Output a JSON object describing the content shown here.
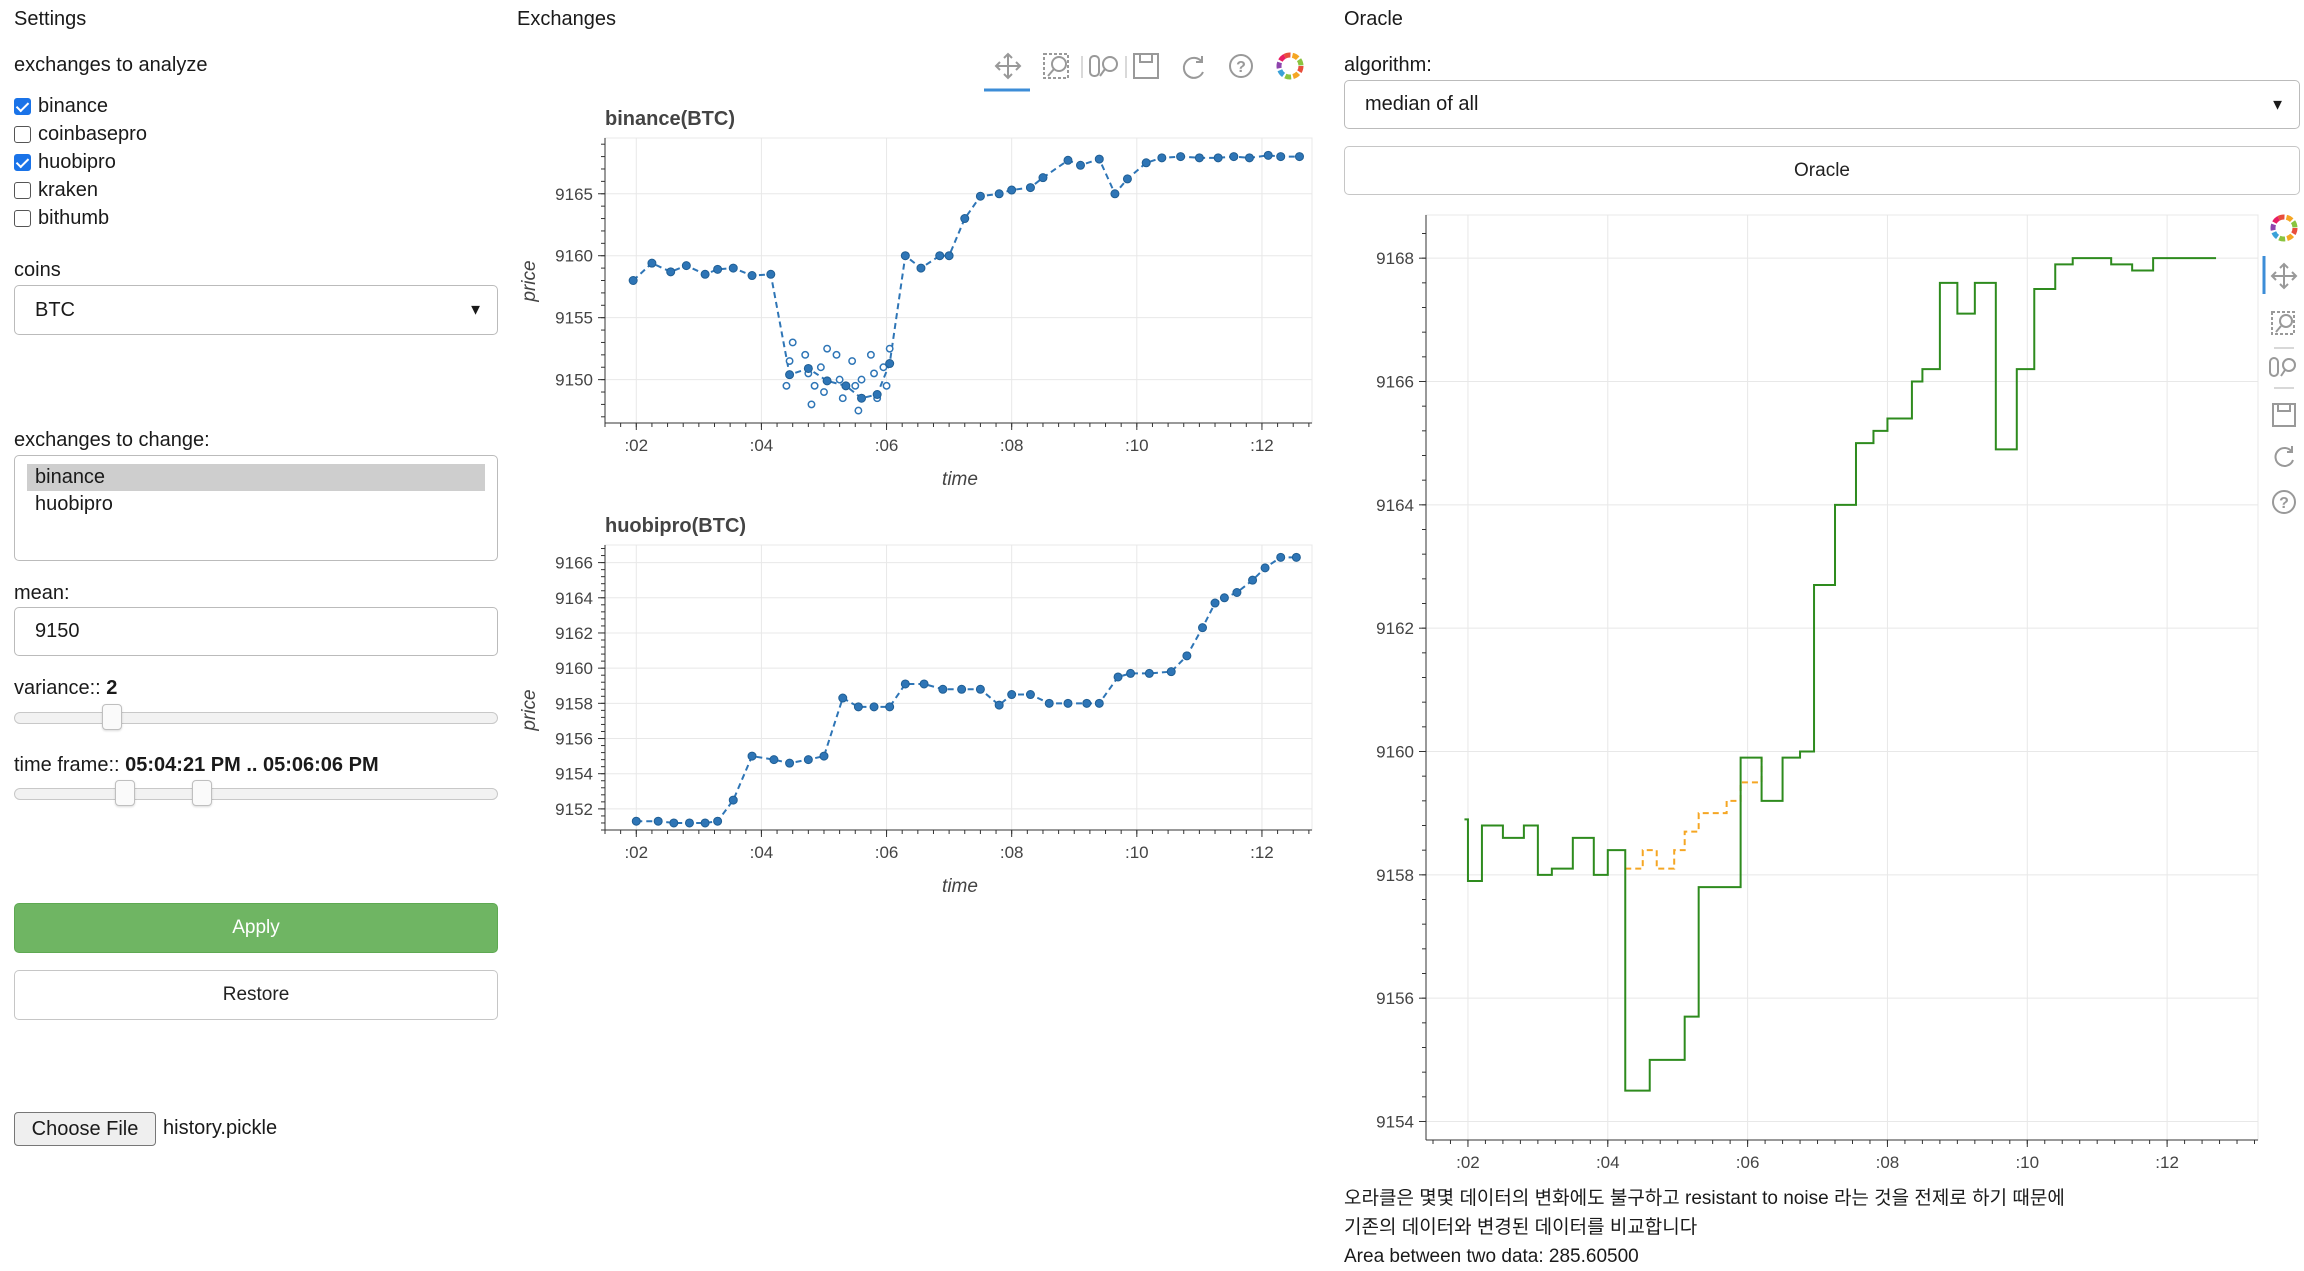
{
  "settings": {
    "title": "Settings",
    "exchanges_label": "exchanges to analyze",
    "exchanges": [
      {
        "name": "binance",
        "checked": true
      },
      {
        "name": "coinbasepro",
        "checked": false
      },
      {
        "name": "huobipro",
        "checked": true
      },
      {
        "name": "kraken",
        "checked": false
      },
      {
        "name": "bithumb",
        "checked": false
      }
    ],
    "coins_label": "coins",
    "coins_value": "BTC",
    "change_label": "exchanges to change:",
    "change_options": [
      "binance",
      "huobipro"
    ],
    "mean_label": "mean:",
    "mean_value": "9150",
    "variance_label": "variance:: ",
    "variance_value": "2",
    "timeframe_label": "time frame:: ",
    "timeframe_value": "05:04:21 PM .. 05:06:06 PM",
    "apply_label": "Apply",
    "restore_label": "Restore",
    "file_button": "Choose File",
    "file_name": "history.pickle"
  },
  "exchanges_panel": {
    "title": "Exchanges",
    "toolbar": [
      "pan-icon",
      "box-zoom-icon",
      "wheel-zoom-icon",
      "save-icon",
      "reset-icon",
      "help-icon",
      "bokeh-logo-icon"
    ]
  },
  "oracle": {
    "title": "Oracle",
    "algorithm_label": "algorithm:",
    "algorithm_value": "median of all",
    "button_label": "Oracle",
    "note_line1": "오라클은 몇몇 데이터의 변화에도 불구하고 resistant to noise 라는 것을 전제로 하기 때문에",
    "note_line2": "기존의 데이터와 변경된 데이터를 비교합니다",
    "note_line3": "Area between two data: 285.60500"
  },
  "colors": {
    "series": "#2e75b6",
    "oracle_new": "#2e8b1e",
    "oracle_orig": "#f5a623",
    "apply": "#6fb563"
  },
  "chart_data": [
    {
      "type": "line",
      "title": "binance(BTC)",
      "xlabel": "time",
      "ylabel": "price",
      "x_ticks": [
        ":02",
        ":04",
        ":06",
        ":08",
        ":10",
        ":12"
      ],
      "y_ticks": [
        9150,
        9155,
        9160,
        9165
      ],
      "xlim": [
        1.5,
        12.8
      ],
      "ylim": [
        9146.5,
        9169.5
      ],
      "grid": true,
      "x": [
        1.95,
        2.25,
        2.55,
        2.8,
        3.1,
        3.3,
        3.55,
        3.85,
        4.15,
        4.45,
        4.75,
        5.05,
        5.35,
        5.6,
        5.85,
        6.05,
        6.3,
        6.55,
        6.85,
        7.0,
        7.25,
        7.5,
        7.8,
        8.0,
        8.3,
        8.5,
        8.9,
        9.1,
        9.4,
        9.65,
        9.85,
        10.15,
        10.4,
        10.7,
        11.0,
        11.3,
        11.55,
        11.8,
        12.1,
        12.3,
        12.6
      ],
      "y": [
        9158.0,
        9159.4,
        9158.7,
        9159.2,
        9158.5,
        9158.9,
        9159.0,
        9158.4,
        9158.5,
        9150.4,
        9150.9,
        9149.9,
        9149.5,
        9148.5,
        9148.8,
        9151.3,
        9160.0,
        9159.0,
        9160.0,
        9160.0,
        9163.0,
        9164.8,
        9165.0,
        9165.3,
        9165.5,
        9166.3,
        9167.7,
        9167.3,
        9167.8,
        9165.0,
        9166.2,
        9167.5,
        9167.9,
        9168.0,
        9167.9,
        9167.9,
        9168.0,
        9167.9,
        9168.1,
        9168.0,
        9168.0
      ],
      "scatter_x": [
        4.4,
        4.45,
        4.5,
        4.7,
        4.75,
        4.8,
        4.85,
        4.95,
        5.0,
        5.05,
        5.2,
        5.25,
        5.3,
        5.45,
        5.5,
        5.55,
        5.6,
        5.75,
        5.8,
        5.85,
        5.95,
        6.0,
        6.05
      ],
      "scatter_y": [
        9149.5,
        9151.5,
        9153.0,
        9152.0,
        9150.5,
        9148.0,
        9149.5,
        9151.0,
        9149.0,
        9152.5,
        9152.0,
        9150.0,
        9148.5,
        9151.5,
        9149.5,
        9147.5,
        9150.0,
        9152.0,
        9150.5,
        9148.5,
        9151.0,
        9149.5,
        9152.5
      ]
    },
    {
      "type": "line",
      "title": "huobipro(BTC)",
      "xlabel": "time",
      "ylabel": "price",
      "x_ticks": [
        ":02",
        ":04",
        ":06",
        ":08",
        ":10",
        ":12"
      ],
      "y_ticks": [
        9152,
        9154,
        9156,
        9158,
        9160,
        9162,
        9164,
        9166
      ],
      "xlim": [
        1.5,
        12.8
      ],
      "ylim": [
        9150.8,
        9167.0
      ],
      "grid": true,
      "x": [
        2.0,
        2.35,
        2.6,
        2.85,
        3.1,
        3.3,
        3.55,
        3.85,
        4.2,
        4.45,
        4.75,
        5.0,
        5.3,
        5.55,
        5.8,
        6.05,
        6.3,
        6.6,
        6.9,
        7.2,
        7.5,
        7.8,
        8.0,
        8.3,
        8.6,
        8.9,
        9.2,
        9.4,
        9.7,
        9.9,
        10.2,
        10.55,
        10.8,
        11.05,
        11.25,
        11.4,
        11.6,
        11.85,
        12.05,
        12.3,
        12.55
      ],
      "y": [
        9151.3,
        9151.3,
        9151.2,
        9151.2,
        9151.2,
        9151.3,
        9152.5,
        9155.0,
        9154.8,
        9154.6,
        9154.8,
        9155.0,
        9158.3,
        9157.8,
        9157.8,
        9157.8,
        9159.1,
        9159.1,
        9158.8,
        9158.8,
        9158.8,
        9157.9,
        9158.5,
        9158.5,
        9158.0,
        9158.0,
        9158.0,
        9158.0,
        9159.5,
        9159.7,
        9159.7,
        9159.8,
        9160.7,
        9162.3,
        9163.7,
        9164.0,
        9164.3,
        9165.0,
        9165.7,
        9166.3,
        9166.3
      ]
    },
    {
      "type": "line",
      "title": "",
      "x_ticks": [
        ":02",
        ":04",
        ":06",
        ":08",
        ":10",
        ":12"
      ],
      "y_ticks": [
        9154,
        9156,
        9158,
        9160,
        9162,
        9164,
        9166,
        9168
      ],
      "xlim": [
        1.4,
        13.3
      ],
      "ylim": [
        9153.7,
        9168.7
      ],
      "grid": true,
      "series": [
        {
          "x": [
            1.95,
            2.0,
            2.2,
            2.5,
            2.8,
            3.0,
            3.2,
            3.5,
            3.8,
            4.0,
            4.25,
            4.6,
            4.85,
            5.1,
            5.3,
            5.45,
            5.7,
            5.9,
            6.2,
            6.5,
            6.75,
            6.95,
            7.25,
            7.55,
            7.8,
            8.0,
            8.35,
            8.5,
            8.75,
            9.0,
            9.25,
            9.55,
            9.85,
            10.1,
            10.4,
            10.65,
            11.2,
            11.5,
            11.8,
            12.0,
            12.3,
            12.7
          ],
          "y": [
            9158.9,
            9157.9,
            9158.8,
            9158.6,
            9158.8,
            9158.0,
            9158.1,
            9158.6,
            9158.0,
            9158.4,
            9154.5,
            9155.0,
            9155.0,
            9155.7,
            9157.8,
            9157.8,
            9157.8,
            9159.9,
            9159.2,
            9159.9,
            9160.0,
            9162.7,
            9164.0,
            9165.0,
            9165.2,
            9165.4,
            9166.0,
            9166.2,
            9167.6,
            9167.1,
            9167.6,
            9164.9,
            9166.2,
            9167.5,
            9167.9,
            9168.0,
            9167.9,
            9167.8,
            9168.0,
            9168.0,
            9168.0,
            9168.0
          ]
        },
        {
          "x": [
            4.25,
            4.5,
            4.7,
            4.95,
            5.1,
            5.3,
            5.45,
            5.7,
            5.9,
            6.2
          ],
          "y": [
            9158.1,
            9158.4,
            9158.1,
            9158.4,
            9158.7,
            9159.0,
            9159.0,
            9159.2,
            9159.5,
            9159.9
          ]
        }
      ]
    }
  ]
}
